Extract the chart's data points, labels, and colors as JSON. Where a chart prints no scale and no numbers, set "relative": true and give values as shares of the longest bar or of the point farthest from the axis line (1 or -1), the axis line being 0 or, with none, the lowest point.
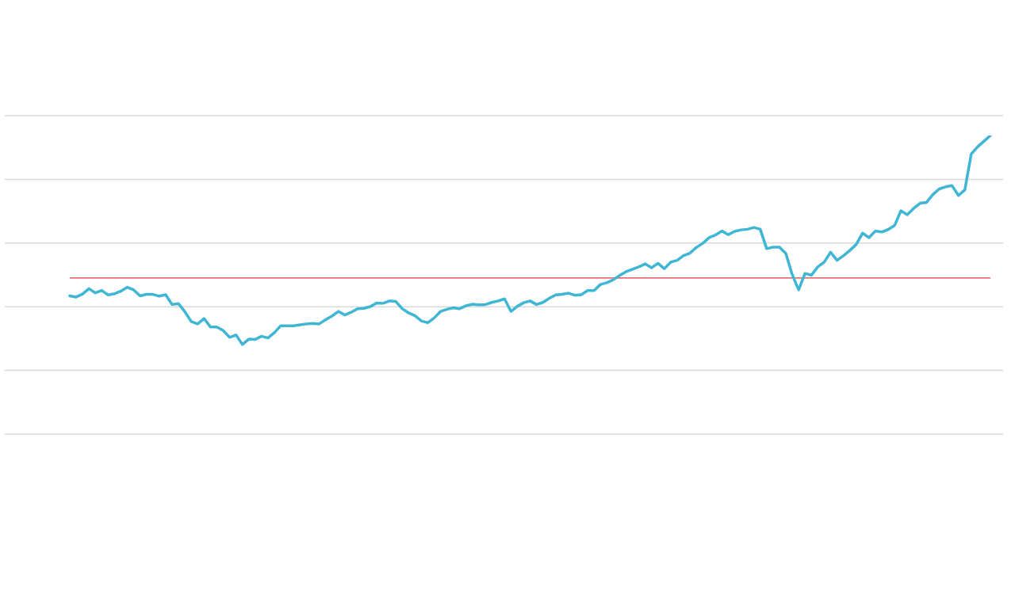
{
  "chart_data": {
    "type": "line",
    "relative": true,
    "grid": "y",
    "marker": "none",
    "line_style": "solid",
    "categories": [
      null,
      null,
      null,
      null,
      null,
      null,
      null,
      null,
      null,
      null,
      null,
      null,
      null,
      null,
      null,
      null,
      null,
      null,
      null,
      null,
      null,
      null,
      null,
      null,
      null,
      null,
      null,
      null,
      null,
      null,
      null,
      null,
      null,
      null,
      null,
      null,
      null,
      null,
      null,
      null,
      null,
      null,
      null,
      null,
      null,
      null,
      null,
      null,
      null,
      null,
      null,
      null,
      null,
      null,
      null,
      null,
      null,
      null,
      null,
      null,
      null,
      null,
      null,
      null,
      null,
      null,
      null,
      null,
      null,
      null,
      null,
      null,
      null,
      null,
      null,
      null,
      null,
      null,
      null,
      null,
      null,
      null,
      null,
      null,
      null,
      null,
      null,
      null,
      null,
      null,
      null,
      null,
      null,
      null,
      null,
      null,
      null,
      null,
      null,
      null,
      null,
      null,
      null,
      null,
      null,
      null,
      null,
      null,
      null,
      null,
      null,
      null,
      null,
      null,
      null,
      null,
      null,
      null,
      null,
      null,
      null,
      null,
      null,
      null,
      null,
      null,
      null,
      null,
      null,
      null,
      null,
      null,
      null,
      null,
      null,
      null,
      null,
      null,
      null,
      null,
      null,
      null,
      null,
      null,
      null
    ],
    "series": [
      {
        "color": "#3fb6d4",
        "values": [
          0.463,
          0.459,
          0.469,
          0.487,
          0.473,
          0.481,
          0.466,
          0.47,
          0.479,
          0.492,
          0.483,
          0.463,
          0.468,
          0.468,
          0.462,
          0.467,
          0.434,
          0.437,
          0.41,
          0.377,
          0.369,
          0.387,
          0.359,
          0.359,
          0.347,
          0.324,
          0.332,
          0.3,
          0.318,
          0.317,
          0.328,
          0.322,
          0.34,
          0.363,
          0.363,
          0.363,
          0.366,
          0.369,
          0.371,
          0.369,
          0.383,
          0.395,
          0.411,
          0.399,
          0.408,
          0.42,
          0.421,
          0.427,
          0.439,
          0.438,
          0.446,
          0.444,
          0.42,
          0.406,
          0.396,
          0.379,
          0.373,
          0.389,
          0.411,
          0.418,
          0.423,
          0.42,
          0.43,
          0.435,
          0.433,
          0.434,
          0.441,
          0.446,
          0.453,
          0.411,
          0.428,
          0.44,
          0.446,
          0.434,
          0.441,
          0.455,
          0.466,
          0.468,
          0.472,
          0.465,
          0.467,
          0.481,
          0.481,
          0.501,
          0.507,
          0.517,
          0.531,
          0.544,
          0.552,
          0.56,
          0.57,
          0.557,
          0.572,
          0.554,
          0.576,
          0.582,
          0.598,
          0.606,
          0.625,
          0.639,
          0.658,
          0.667,
          0.68,
          0.668,
          0.679,
          0.684,
          0.686,
          0.692,
          0.686,
          0.621,
          0.626,
          0.626,
          0.605,
          0.534,
          0.483,
          0.538,
          0.532,
          0.56,
          0.576,
          0.609,
          0.582,
          0.597,
          0.615,
          0.635,
          0.673,
          0.658,
          0.68,
          0.677,
          0.685,
          0.698,
          0.748,
          0.735,
          0.756,
          0.773,
          0.776,
          0.802,
          0.821,
          0.828,
          0.832,
          0.799,
          0.818,
          0.938,
          0.962,
          0.981,
          1
        ]
      }
    ],
    "ref_lines": [
      {
        "axis": "y",
        "value": 0.523,
        "color": "#e0393e"
      }
    ]
  }
}
